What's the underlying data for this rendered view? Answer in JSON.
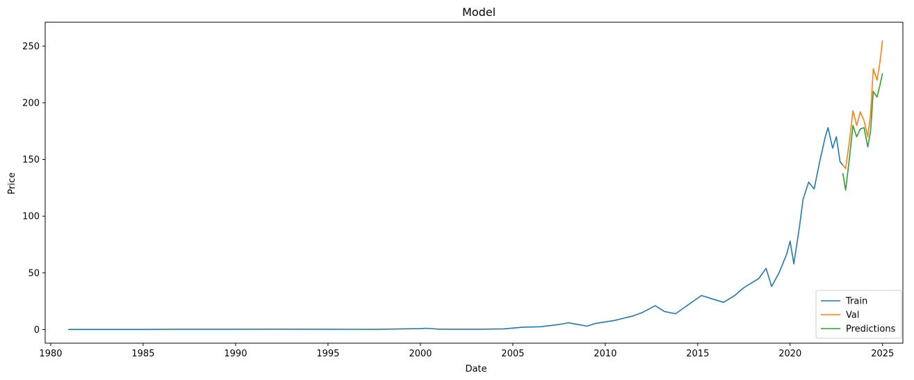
{
  "chart_data": {
    "type": "line",
    "title": "Model",
    "xlabel": "Date",
    "ylabel": "Price",
    "xlim": [
      1979.7,
      2026.1
    ],
    "ylim": [
      -12,
      271
    ],
    "x_ticks": [
      1980,
      1985,
      1990,
      1995,
      2000,
      2005,
      2010,
      2015,
      2020,
      2025
    ],
    "y_ticks": [
      0,
      50,
      100,
      150,
      200,
      250
    ],
    "grid": false,
    "legend_position": "lower right",
    "series": [
      {
        "name": "Train",
        "color": "#1f77b4",
        "x": [
          1980.95,
          1983,
          1985,
          1987.5,
          1990,
          1992.5,
          1995,
          1997.5,
          2000,
          2000.3,
          2001,
          2003,
          2004.5,
          2005.5,
          2006.5,
          2007.5,
          2008,
          2008.7,
          2009,
          2009.5,
          2010.5,
          2011.5,
          2012,
          2012.7,
          2013.2,
          2013.8,
          2014.5,
          2015.2,
          2015.8,
          2016.4,
          2017,
          2017.5,
          2018,
          2018.3,
          2018.7,
          2019.0,
          2019.4,
          2019.8,
          2020.0,
          2020.2,
          2020.5,
          2020.7,
          2021.0,
          2021.3,
          2021.6,
          2021.9,
          2022.05,
          2022.3,
          2022.5,
          2022.7,
          2022.85
        ],
        "y": [
          0.1,
          0.1,
          0.1,
          0.3,
          0.3,
          0.4,
          0.3,
          0.2,
          0.8,
          1.2,
          0.4,
          0.3,
          0.6,
          2.0,
          2.5,
          4.5,
          6.0,
          4.0,
          3.0,
          5.5,
          8.0,
          12.0,
          15.0,
          21.0,
          16.0,
          14.0,
          22.0,
          30.0,
          27.0,
          24.0,
          30.0,
          37.0,
          42.0,
          45.0,
          54.0,
          38.0,
          50.0,
          66.0,
          78.0,
          58.0,
          90.0,
          115.0,
          130.0,
          124.0,
          148.0,
          170.0,
          178.0,
          160.0,
          170.0,
          148.0,
          145.0
        ]
      },
      {
        "name": "Val",
        "color": "#ff7f0e",
        "x": [
          2022.85,
          2023.0,
          2023.2,
          2023.4,
          2023.6,
          2023.8,
          2024.0,
          2024.2,
          2024.35,
          2024.5,
          2024.7,
          2024.85,
          2025.0
        ],
        "y": [
          145.0,
          142.0,
          165.0,
          193.0,
          180.0,
          192.0,
          184.0,
          170.0,
          190.0,
          230.0,
          220.0,
          235.0,
          255.0
        ]
      },
      {
        "name": "Predictions",
        "color": "#2ca02c",
        "x": [
          2022.85,
          2023.0,
          2023.2,
          2023.4,
          2023.6,
          2023.8,
          2024.0,
          2024.2,
          2024.35,
          2024.5,
          2024.7,
          2024.85,
          2025.0
        ],
        "y": [
          138.0,
          123.0,
          150.0,
          180.0,
          170.0,
          177.0,
          178.0,
          161.0,
          175.0,
          210.0,
          205.0,
          215.0,
          226.0
        ]
      }
    ]
  }
}
